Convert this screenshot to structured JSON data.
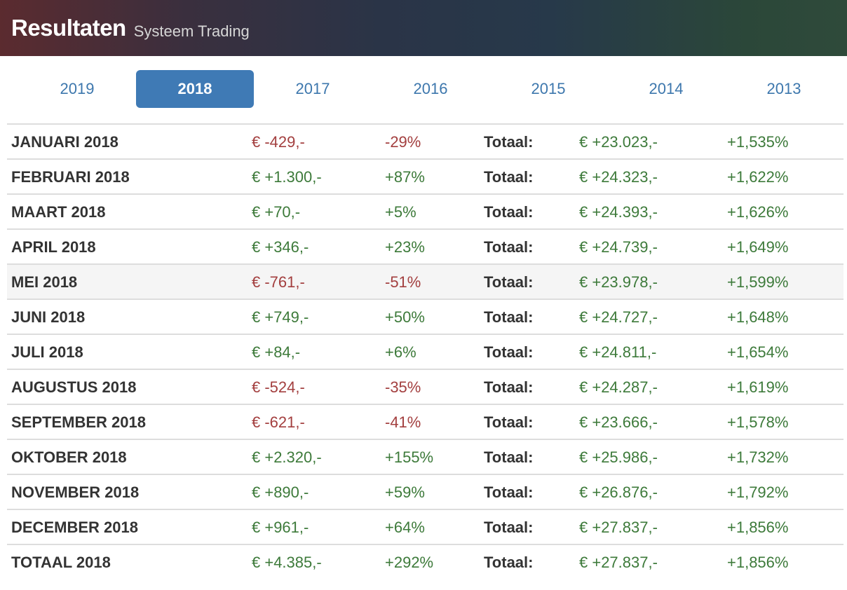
{
  "header": {
    "title": "Resultaten",
    "subtitle": "Systeem Trading"
  },
  "tabs": [
    {
      "label": "2019",
      "active": false
    },
    {
      "label": "2018",
      "active": true
    },
    {
      "label": "2017",
      "active": false
    },
    {
      "label": "2016",
      "active": false
    },
    {
      "label": "2015",
      "active": false
    },
    {
      "label": "2014",
      "active": false
    },
    {
      "label": "2013",
      "active": false
    }
  ],
  "colors": {
    "positive": "#3d7a3a",
    "negative": "#a33f3f",
    "accent": "#3f7ab5"
  },
  "rows": [
    {
      "month": "JANUARI 2018",
      "amount": "€ -429,-",
      "pct": "-29%",
      "label": "Totaal:",
      "total": "€ +23.023,-",
      "total_pct": "+1,535%",
      "negative": true
    },
    {
      "month": "FEBRUARI 2018",
      "amount": "€ +1.300,-",
      "pct": "+87%",
      "label": "Totaal:",
      "total": "€ +24.323,-",
      "total_pct": "+1,622%",
      "negative": false
    },
    {
      "month": "MAART 2018",
      "amount": "€ +70,-",
      "pct": "+5%",
      "label": "Totaal:",
      "total": "€ +24.393,-",
      "total_pct": "+1,626%",
      "negative": false
    },
    {
      "month": "APRIL 2018",
      "amount": "€ +346,-",
      "pct": "+23%",
      "label": "Totaal:",
      "total": "€ +24.739,-",
      "total_pct": "+1,649%",
      "negative": false
    },
    {
      "month": "MEI 2018",
      "amount": "€ -761,-",
      "pct": "-51%",
      "label": "Totaal:",
      "total": "€ +23.978,-",
      "total_pct": "+1,599%",
      "negative": true,
      "highlighted": true
    },
    {
      "month": "JUNI 2018",
      "amount": "€ +749,-",
      "pct": "+50%",
      "label": "Totaal:",
      "total": "€ +24.727,-",
      "total_pct": "+1,648%",
      "negative": false
    },
    {
      "month": "JULI 2018",
      "amount": "€ +84,-",
      "pct": "+6%",
      "label": "Totaal:",
      "total": "€ +24.811,-",
      "total_pct": "+1,654%",
      "negative": false
    },
    {
      "month": "AUGUSTUS 2018",
      "amount": "€ -524,-",
      "pct": "-35%",
      "label": "Totaal:",
      "total": "€ +24.287,-",
      "total_pct": "+1,619%",
      "negative": true
    },
    {
      "month": "SEPTEMBER 2018",
      "amount": "€ -621,-",
      "pct": "-41%",
      "label": "Totaal:",
      "total": "€ +23.666,-",
      "total_pct": "+1,578%",
      "negative": true
    },
    {
      "month": "OKTOBER 2018",
      "amount": "€ +2.320,-",
      "pct": "+155%",
      "label": "Totaal:",
      "total": "€ +25.986,-",
      "total_pct": "+1,732%",
      "negative": false
    },
    {
      "month": "NOVEMBER 2018",
      "amount": "€ +890,-",
      "pct": "+59%",
      "label": "Totaal:",
      "total": "€ +26.876,-",
      "total_pct": "+1,792%",
      "negative": false
    },
    {
      "month": "DECEMBER 2018",
      "amount": "€ +961,-",
      "pct": "+64%",
      "label": "Totaal:",
      "total": "€ +27.837,-",
      "total_pct": "+1,856%",
      "negative": false
    },
    {
      "month": "TOTAAL 2018",
      "amount": "€ +4.385,-",
      "pct": "+292%",
      "label": "Totaal:",
      "total": "€ +27.837,-",
      "total_pct": "+1,856%",
      "negative": false
    }
  ]
}
